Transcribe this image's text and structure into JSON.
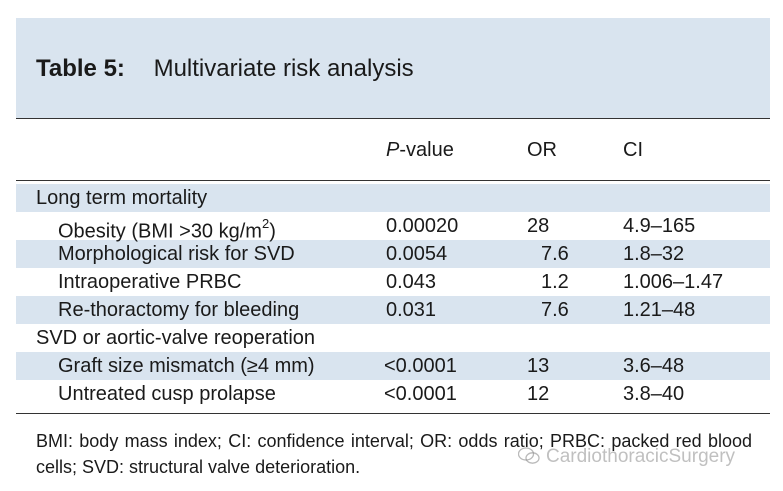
{
  "table": {
    "label": "Table 5:",
    "title": "Multivariate risk analysis",
    "columns": {
      "pvalue_italic": "P",
      "pvalue_rest": "-value",
      "or": "OR",
      "ci": "CI"
    },
    "groups": [
      {
        "name": "Long term mortality",
        "rows": [
          {
            "label": "Obesity (BMI >30 kg/m",
            "sup": "2",
            "label_end": ")",
            "p": "0.00020",
            "or": "28",
            "ci": "4.9–165"
          },
          {
            "label": "Morphological risk for SVD",
            "p": "0.0054",
            "or": "7.6",
            "ci": "1.8–32"
          },
          {
            "label": "Intraoperative PRBC",
            "p": "0.043",
            "or": "1.2",
            "ci": "1.006–1.47"
          },
          {
            "label": "Re-thoractomy for bleeding",
            "p": "0.031",
            "or": "7.6",
            "ci": "1.21–48"
          }
        ]
      },
      {
        "name": "SVD or aortic-valve reoperation",
        "rows": [
          {
            "label_pre": "Graft size mismatch (",
            "symbol": "≥",
            "label_post": "4 mm)",
            "p": "<0.0001",
            "or": "13",
            "ci": "3.6–48"
          },
          {
            "label": "Untreated cusp prolapse",
            "p": "<0.0001",
            "or": "12",
            "ci": "3.8–40"
          }
        ]
      }
    ],
    "footnote": "BMI: body mass index; CI: confidence interval; OR: odds ratio; PRBC: packed red blood cells; SVD: structural valve deterioration."
  },
  "watermark": {
    "text": "CardiothoracicSurgery",
    "icon": "wechat-icon"
  },
  "colors": {
    "band": "#d9e4ef",
    "text": "#1a1a1a",
    "rule": "#333333"
  }
}
